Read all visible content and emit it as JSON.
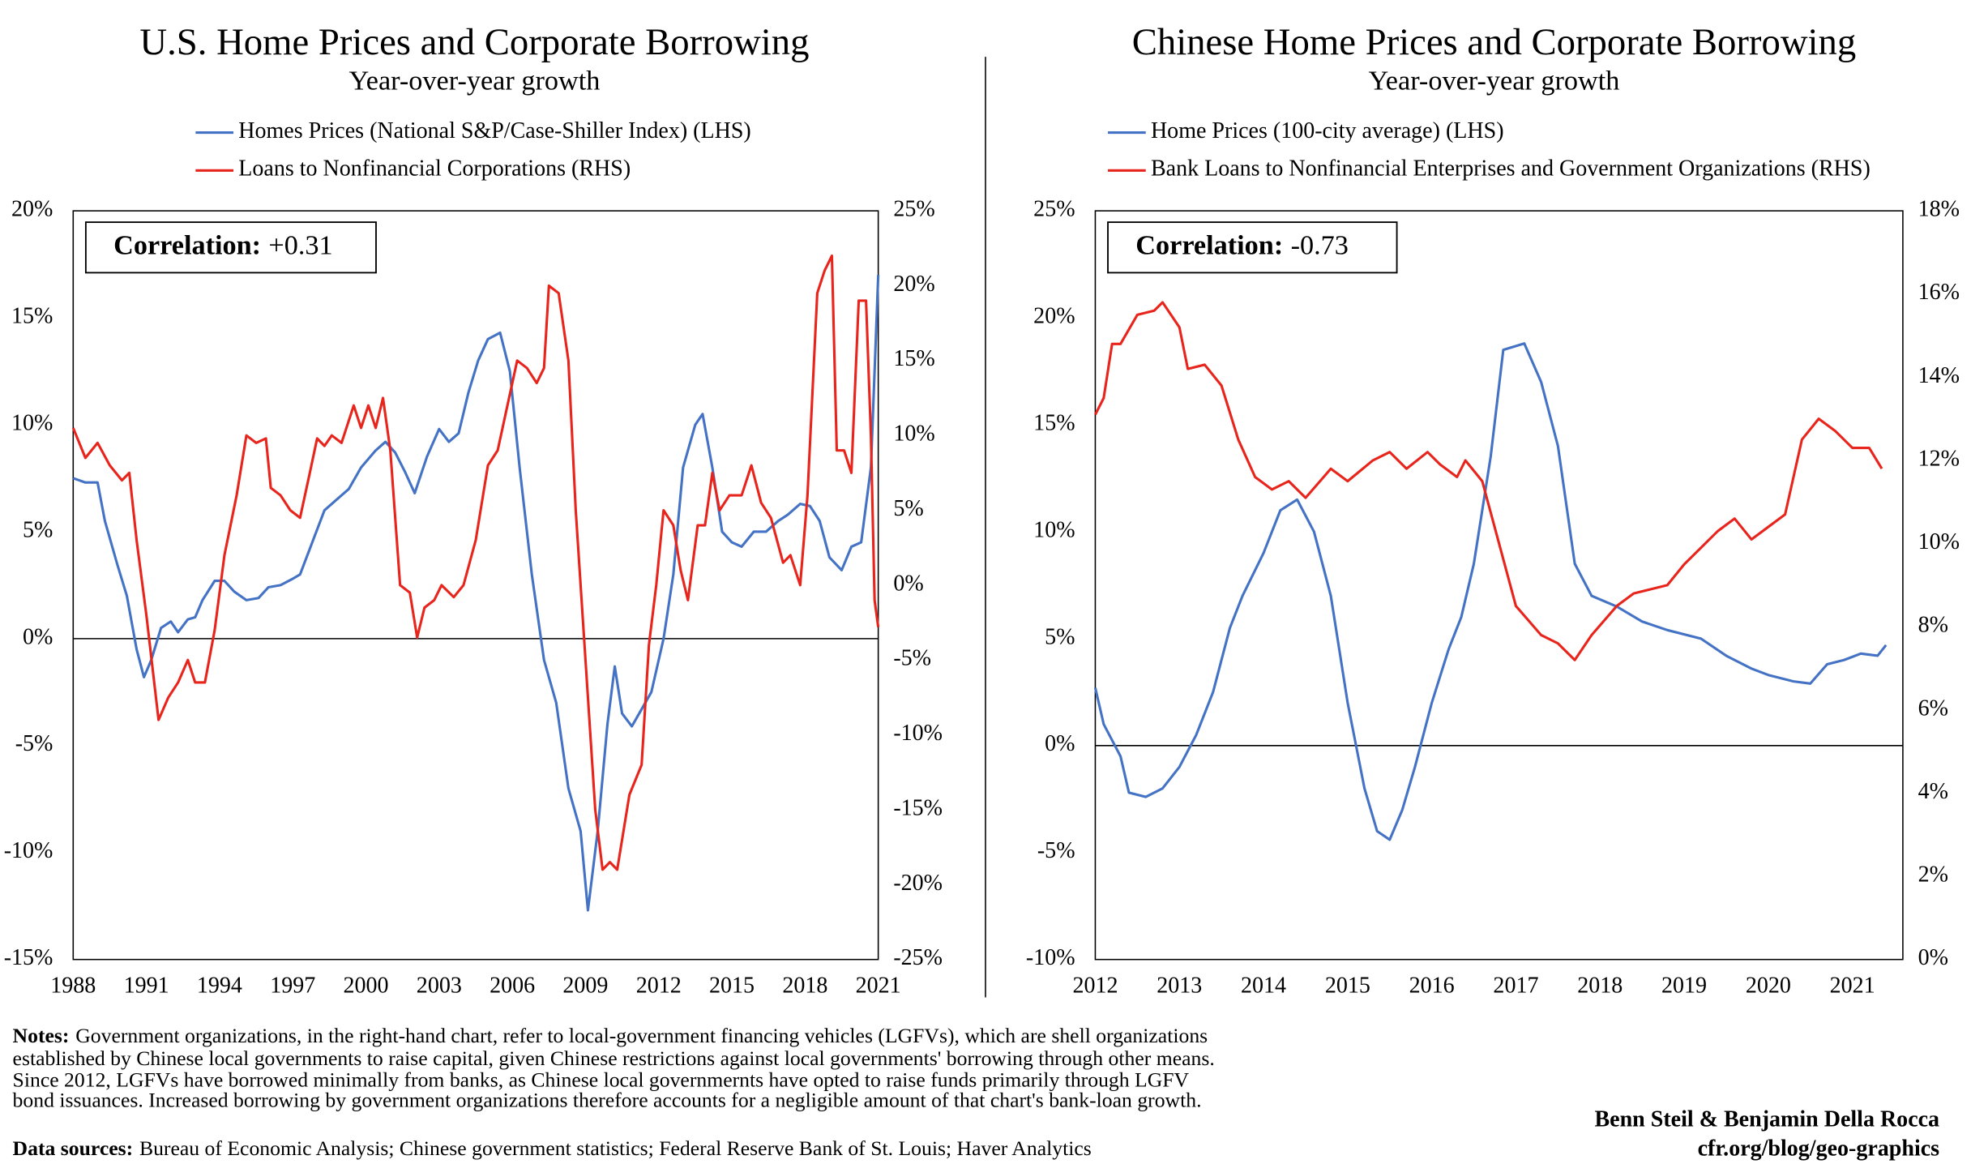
{
  "chart_data": [
    {
      "type": "line",
      "title": "U.S. Home Prices and Corporate Borrowing",
      "subtitle": "Year-over-year growth",
      "annotation": {
        "label": "Correlation:",
        "value": "+0.31"
      },
      "xlim": [
        1988,
        2021
      ],
      "xticks": [
        1988,
        1991,
        1994,
        1997,
        2000,
        2003,
        2006,
        2009,
        2012,
        2015,
        2018,
        2021
      ],
      "ylim": [
        -15,
        20
      ],
      "yticks": [
        {
          "value": -15,
          "label": "-15%"
        },
        {
          "value": -10,
          "label": "-10%"
        },
        {
          "value": -5,
          "label": "-5%"
        },
        {
          "value": 0,
          "label": "0%"
        },
        {
          "value": 5,
          "label": "5%"
        },
        {
          "value": 10,
          "label": "10%"
        },
        {
          "value": 15,
          "label": "15%"
        },
        {
          "value": 20,
          "label": "20%"
        }
      ],
      "y2lim": [
        -25,
        25
      ],
      "y2ticks": [
        {
          "value": -25,
          "label": "-25%"
        },
        {
          "value": -20,
          "label": "-20%"
        },
        {
          "value": -15,
          "label": "-15%"
        },
        {
          "value": -10,
          "label": "-10%"
        },
        {
          "value": -5,
          "label": "-5%"
        },
        {
          "value": 0,
          "label": "0%"
        },
        {
          "value": 5,
          "label": "5%"
        },
        {
          "value": 10,
          "label": "10%"
        },
        {
          "value": 15,
          "label": "15%"
        },
        {
          "value": 20,
          "label": "20%"
        },
        {
          "value": 25,
          "label": "25%"
        }
      ],
      "grid": false,
      "zero_line": true,
      "series": [
        {
          "name": "Homes Prices (National S&P/Case-Shiller Index) (LHS)",
          "color": "#4472c4",
          "axis": "y",
          "x": [
            1988,
            1988.5,
            1989,
            1989.3,
            1989.8,
            1990.2,
            1990.6,
            1990.9,
            1991.2,
            1991.6,
            1992,
            1992.3,
            1992.7,
            1993,
            1993.3,
            1993.8,
            1994.2,
            1994.6,
            1995.1,
            1995.6,
            1996,
            1996.5,
            1997,
            1997.3,
            1997.8,
            1998.3,
            1998.8,
            1999.3,
            1999.8,
            2000.4,
            2000.8,
            2001.2,
            2001.6,
            2002,
            2002.5,
            2003,
            2003.4,
            2003.8,
            2004.2,
            2004.6,
            2005,
            2005.5,
            2005.9,
            2006.3,
            2006.8,
            2007.3,
            2007.8,
            2008.3,
            2008.8,
            2009.1,
            2009.5,
            2009.9,
            2010.2,
            2010.5,
            2010.9,
            2011.3,
            2011.7,
            2012.2,
            2012.6,
            2013,
            2013.5,
            2013.8,
            2014.2,
            2014.6,
            2015,
            2015.4,
            2015.9,
            2016.4,
            2016.9,
            2017.3,
            2017.8,
            2018.2,
            2018.6,
            2019,
            2019.5,
            2019.9,
            2020.3,
            2020.7,
            2021
          ],
          "values": [
            7.5,
            7.3,
            7.3,
            5.5,
            3.5,
            2,
            -0.5,
            -1.8,
            -1,
            0.5,
            0.8,
            0.3,
            0.9,
            1,
            1.8,
            2.7,
            2.7,
            2.2,
            1.8,
            1.9,
            2.4,
            2.5,
            2.8,
            3,
            4.5,
            6,
            6.5,
            7,
            8,
            8.8,
            9.2,
            8.7,
            7.8,
            6.8,
            8.5,
            9.8,
            9.2,
            9.6,
            11.5,
            13,
            14,
            14.3,
            12.5,
            8,
            3,
            -1,
            -3,
            -7,
            -9,
            -12.7,
            -9,
            -4,
            -1.3,
            -3.5,
            -4.1,
            -3.3,
            -2.5,
            0,
            3,
            8,
            10,
            10.5,
            8,
            5,
            4.5,
            4.3,
            5,
            5,
            5.5,
            5.8,
            6.3,
            6.2,
            5.5,
            3.8,
            3.2,
            4.3,
            4.5,
            8,
            17
          ]
        },
        {
          "name": "Loans to Nonfinancial Corporations (RHS)",
          "color": "#e8251c",
          "axis": "y2",
          "x": [
            1988,
            1988.5,
            1989,
            1989.5,
            1990,
            1990.3,
            1990.6,
            1991,
            1991.5,
            1991.9,
            1992.3,
            1992.7,
            1993,
            1993.4,
            1993.8,
            1994.2,
            1994.7,
            1995.1,
            1995.5,
            1995.9,
            1996.1,
            1996.5,
            1996.9,
            1997.3,
            1997.7,
            1998,
            1998.3,
            1998.6,
            1999,
            1999.5,
            1999.8,
            2000.1,
            2000.4,
            2000.7,
            2001,
            2001.4,
            2001.8,
            2002.1,
            2002.4,
            2002.8,
            2003.1,
            2003.6,
            2004,
            2004.5,
            2005,
            2005.4,
            2005.8,
            2006.2,
            2006.6,
            2007,
            2007.3,
            2007.5,
            2007.9,
            2008.3,
            2008.6,
            2009,
            2009.4,
            2009.7,
            2010,
            2010.3,
            2010.8,
            2011.3,
            2011.6,
            2011.9,
            2012.2,
            2012.6,
            2012.9,
            2013.2,
            2013.6,
            2013.9,
            2014.2,
            2014.5,
            2014.9,
            2015.4,
            2015.8,
            2016.2,
            2016.6,
            2017.1,
            2017.4,
            2017.8,
            2018.1,
            2018.5,
            2018.8,
            2019.1,
            2019.3,
            2019.6,
            2019.9,
            2020.2,
            2020.5,
            2020.7,
            2020.85,
            2021
          ],
          "values": [
            10.5,
            8.5,
            9.5,
            8,
            7,
            7.5,
            3,
            -2,
            -9,
            -7.5,
            -6.5,
            -5,
            -6.5,
            -6.5,
            -3,
            2,
            6,
            10,
            9.5,
            9.8,
            6.5,
            6,
            5,
            4.5,
            7.5,
            9.8,
            9.3,
            10,
            9.5,
            12,
            10.5,
            12,
            10.5,
            12.5,
            9,
            0,
            -0.5,
            -3.5,
            -1.5,
            -1,
            0,
            -0.8,
            0,
            3,
            8,
            9,
            12,
            15,
            14.5,
            13.5,
            14.5,
            20,
            19.5,
            15,
            5,
            -5,
            -15,
            -19,
            -18.5,
            -19,
            -14,
            -12,
            -4,
            0,
            5,
            4,
            1,
            -1,
            4,
            4,
            7.5,
            5,
            6,
            6,
            8,
            5.5,
            4.5,
            1.5,
            2,
            0,
            6,
            19.5,
            21,
            22,
            9,
            9,
            7.5,
            19,
            19,
            10,
            -1,
            -2.8
          ]
        }
      ]
    },
    {
      "type": "line",
      "title": "Chinese Home Prices and Corporate Borrowing",
      "subtitle": "Year-over-year growth",
      "annotation": {
        "label": "Correlation:",
        "value": "-0.73"
      },
      "xlim": [
        2012,
        2021.6
      ],
      "xticks": [
        2012,
        2013,
        2014,
        2015,
        2016,
        2017,
        2018,
        2019,
        2020,
        2021
      ],
      "ylim": [
        -10,
        25
      ],
      "yticks": [
        {
          "value": -10,
          "label": "-10%"
        },
        {
          "value": -5,
          "label": "-5%"
        },
        {
          "value": 0,
          "label": "0%"
        },
        {
          "value": 5,
          "label": "5%"
        },
        {
          "value": 10,
          "label": "10%"
        },
        {
          "value": 15,
          "label": "15%"
        },
        {
          "value": 20,
          "label": "20%"
        },
        {
          "value": 25,
          "label": "25%"
        }
      ],
      "y2lim": [
        0,
        18
      ],
      "y2ticks": [
        {
          "value": 0,
          "label": "0%"
        },
        {
          "value": 2,
          "label": "2%"
        },
        {
          "value": 4,
          "label": "4%"
        },
        {
          "value": 6,
          "label": "6%"
        },
        {
          "value": 8,
          "label": "8%"
        },
        {
          "value": 10,
          "label": "10%"
        },
        {
          "value": 12,
          "label": "12%"
        },
        {
          "value": 14,
          "label": "14%"
        },
        {
          "value": 16,
          "label": "16%"
        },
        {
          "value": 18,
          "label": "18%"
        }
      ],
      "grid": false,
      "zero_line": true,
      "series": [
        {
          "name": "Home Prices (100-city average) (LHS)",
          "color": "#4472c4",
          "axis": "y",
          "x": [
            2012,
            2012.1,
            2012.3,
            2012.4,
            2012.6,
            2012.8,
            2013,
            2013.2,
            2013.4,
            2013.6,
            2013.75,
            2014,
            2014.2,
            2014.4,
            2014.6,
            2014.8,
            2015,
            2015.2,
            2015.35,
            2015.5,
            2015.65,
            2015.8,
            2016,
            2016.2,
            2016.35,
            2016.5,
            2016.7,
            2016.85,
            2017.1,
            2017.3,
            2017.5,
            2017.7,
            2017.9,
            2018.2,
            2018.5,
            2018.8,
            2019.2,
            2019.5,
            2019.8,
            2020,
            2020.3,
            2020.5,
            2020.7,
            2020.9,
            2021.1,
            2021.3,
            2021.4
          ],
          "values": [
            2.7,
            1,
            -0.5,
            -2.2,
            -2.4,
            -2,
            -1,
            0.5,
            2.5,
            5.5,
            7,
            9,
            11,
            11.5,
            10,
            7,
            2,
            -2,
            -4,
            -4.4,
            -3,
            -1,
            2,
            4.5,
            6,
            8.5,
            13.5,
            18.5,
            18.8,
            17,
            14,
            8.5,
            7,
            6.5,
            5.8,
            5.4,
            5,
            4.2,
            3.6,
            3.3,
            3,
            2.9,
            3.8,
            4,
            4.3,
            4.2,
            4.7
          ]
        },
        {
          "name": "Bank Loans to Nonfinancial Enterprises and Government Organizations (RHS)",
          "color": "#e8251c",
          "axis": "y2",
          "x": [
            2012,
            2012.1,
            2012.2,
            2012.3,
            2012.5,
            2012.7,
            2012.8,
            2013,
            2013.1,
            2013.3,
            2013.5,
            2013.7,
            2013.9,
            2014.1,
            2014.3,
            2014.5,
            2014.8,
            2015,
            2015.3,
            2015.5,
            2015.7,
            2015.95,
            2016.1,
            2016.3,
            2016.4,
            2016.6,
            2016.8,
            2017,
            2017.3,
            2017.5,
            2017.7,
            2017.9,
            2018.2,
            2018.4,
            2018.6,
            2018.8,
            2019,
            2019.2,
            2019.4,
            2019.6,
            2019.8,
            2020,
            2020.2,
            2020.4,
            2020.6,
            2020.8,
            2021,
            2021.2,
            2021.35
          ],
          "values": [
            13.1,
            13.5,
            14.8,
            14.8,
            15.5,
            15.6,
            15.8,
            15.2,
            14.2,
            14.3,
            13.8,
            12.5,
            11.6,
            11.3,
            11.5,
            11.1,
            11.8,
            11.5,
            12,
            12.2,
            11.8,
            12.2,
            11.9,
            11.6,
            12,
            11.5,
            10,
            8.5,
            7.8,
            7.6,
            7.2,
            7.8,
            8.5,
            8.8,
            8.9,
            9,
            9.5,
            9.9,
            10.3,
            10.6,
            10.1,
            10.4,
            10.7,
            12.5,
            13,
            12.7,
            12.3,
            12.3,
            11.8
          ]
        }
      ]
    }
  ],
  "notes": {
    "label": "Notes:",
    "lines": [
      "Government organizations, in the right-hand chart, refer to local-government financing vehicles (LGFVs), which are shell organizations",
      "established by Chinese local governments to raise capital, given Chinese restrictions against local governments' borrowing through other means.",
      "Since 2012, LGFVs have borrowed minimally from banks, as Chinese local governmernts have opted to raise funds primarily through LGFV",
      "bond issuances. Increased borrowing by government organizations therefore accounts for a negligible amount of that chart's bank-loan growth."
    ]
  },
  "data_sources": {
    "label": "Data sources:",
    "text": "Bureau of Economic Analysis; Chinese government statistics; Federal Reserve Bank of St. Louis; Haver Analytics"
  },
  "credit": [
    "Benn Steil & Benjamin Della Rocca",
    "cfr.org/blog/geo-graphics"
  ]
}
